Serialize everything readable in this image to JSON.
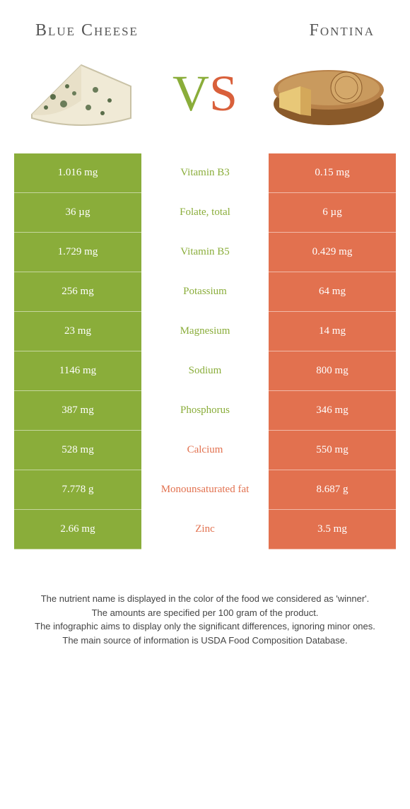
{
  "header": {
    "left_title": "Blue Cheese",
    "right_title": "Fontina",
    "vs_v": "V",
    "vs_s": "S"
  },
  "colors": {
    "green": "#8aad3a",
    "orange": "#e2714f",
    "white": "#ffffff",
    "text": "#444",
    "title": "#555"
  },
  "table": {
    "type": "comparison-table",
    "left_color": "#8aad3a",
    "right_color": "#e2714f",
    "rows": [
      {
        "left": "1.016 mg",
        "label": "Vitamin B3",
        "right": "0.15 mg",
        "winner": "left"
      },
      {
        "left": "36 µg",
        "label": "Folate, total",
        "right": "6 µg",
        "winner": "left"
      },
      {
        "left": "1.729 mg",
        "label": "Vitamin B5",
        "right": "0.429 mg",
        "winner": "left"
      },
      {
        "left": "256 mg",
        "label": "Potassium",
        "right": "64 mg",
        "winner": "left"
      },
      {
        "left": "23 mg",
        "label": "Magnesium",
        "right": "14 mg",
        "winner": "left"
      },
      {
        "left": "1146 mg",
        "label": "Sodium",
        "right": "800 mg",
        "winner": "left"
      },
      {
        "left": "387 mg",
        "label": "Phosphorus",
        "right": "346 mg",
        "winner": "left"
      },
      {
        "left": "528 mg",
        "label": "Calcium",
        "right": "550 mg",
        "winner": "right"
      },
      {
        "left": "7.778 g",
        "label": "Monounsaturated fat",
        "right": "8.687 g",
        "winner": "right"
      },
      {
        "left": "2.66 mg",
        "label": "Zinc",
        "right": "3.5 mg",
        "winner": "right"
      }
    ]
  },
  "footer": {
    "line1": "The nutrient name is displayed in the color of the food we considered as 'winner'.",
    "line2": "The amounts are specified per 100 gram of the product.",
    "line3": "The infographic aims to display only the significant differences, ignoring minor ones.",
    "line4": "The main source of information is USDA Food Composition Database."
  },
  "images": {
    "left_alt": "blue-cheese-wedge",
    "right_alt": "fontina-wheel"
  }
}
